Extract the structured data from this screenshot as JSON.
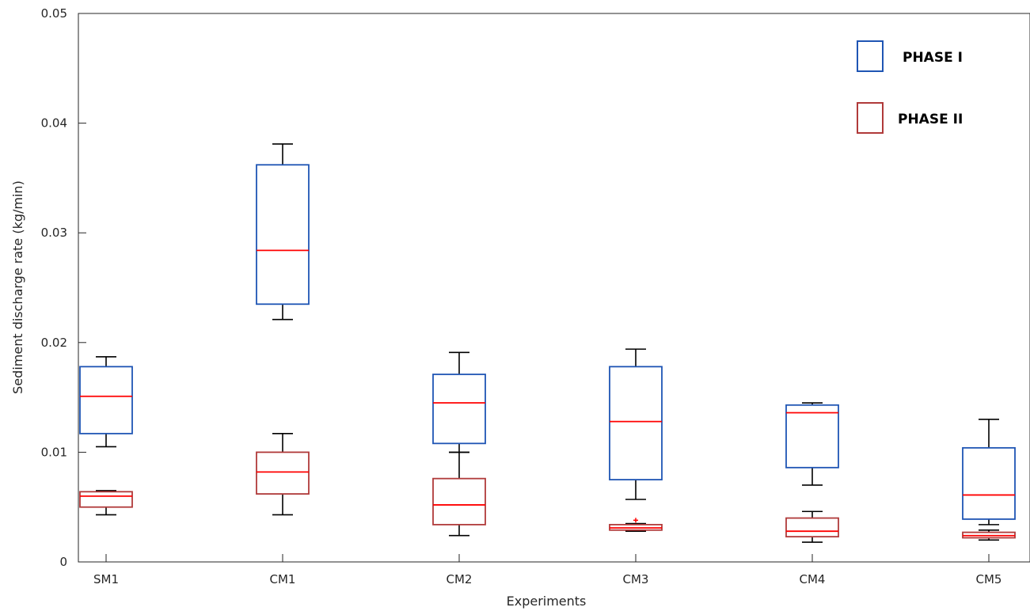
{
  "chart_data": {
    "type": "boxplot",
    "title": "",
    "xlabel": "Experiments",
    "ylabel": "Sediment discharge rate (kg/min)",
    "ylim": [
      0,
      0.05
    ],
    "yticks": [
      {
        "value": 0,
        "label": "0"
      },
      {
        "value": 0.01,
        "label": "0.01"
      },
      {
        "value": 0.02,
        "label": "0.02"
      },
      {
        "value": 0.03,
        "label": "0.03"
      },
      {
        "value": 0.04,
        "label": "0.04"
      },
      {
        "value": 0.05,
        "label": "0.05"
      }
    ],
    "categories": [
      "SM1",
      "CM1",
      "CM2",
      "CM3",
      "CM4",
      "CM5"
    ],
    "grid": false,
    "legend_position": "top-right",
    "colors": {
      "phase1_box": "#1f55b4",
      "phase2_box": "#b03a3a",
      "median": "#ff0000",
      "whisker": "#000000",
      "axis": "#262626"
    },
    "series": [
      {
        "name": "PHASE I",
        "boxes": [
          {
            "category": "SM1",
            "whisker_low": 0.0105,
            "q1": 0.0117,
            "median": 0.0151,
            "q3": 0.0178,
            "whisker_high": 0.0187
          },
          {
            "category": "CM1",
            "whisker_low": 0.0221,
            "q1": 0.0235,
            "median": 0.0284,
            "q3": 0.0362,
            "whisker_high": 0.0381
          },
          {
            "category": "CM2",
            "whisker_low": 0.01,
            "q1": 0.0108,
            "median": 0.0145,
            "q3": 0.0171,
            "whisker_high": 0.0191
          },
          {
            "category": "CM3",
            "whisker_low": 0.0057,
            "q1": 0.0075,
            "median": 0.0128,
            "q3": 0.0178,
            "whisker_high": 0.0194
          },
          {
            "category": "CM4",
            "whisker_low": 0.007,
            "q1": 0.0086,
            "median": 0.0136,
            "q3": 0.0143,
            "whisker_high": 0.0145
          },
          {
            "category": "CM5",
            "whisker_low": 0.0034,
            "q1": 0.0039,
            "median": 0.0061,
            "q3": 0.0104,
            "whisker_high": 0.013
          }
        ]
      },
      {
        "name": "PHASE II",
        "boxes": [
          {
            "category": "SM1",
            "whisker_low": 0.0043,
            "q1": 0.005,
            "median": 0.006,
            "q3": 0.0064,
            "whisker_high": 0.0065
          },
          {
            "category": "CM1",
            "whisker_low": 0.0043,
            "q1": 0.0062,
            "median": 0.0082,
            "q3": 0.01,
            "whisker_high": 0.0117
          },
          {
            "category": "CM2",
            "whisker_low": 0.0024,
            "q1": 0.0034,
            "median": 0.0052,
            "q3": 0.0076,
            "whisker_high": 0.01
          },
          {
            "category": "CM3",
            "whisker_low": 0.0028,
            "q1": 0.0029,
            "median": 0.0031,
            "q3": 0.0034,
            "whisker_high": 0.0035,
            "outliers": [
              0.0038
            ]
          },
          {
            "category": "CM4",
            "whisker_low": 0.0018,
            "q1": 0.0023,
            "median": 0.0028,
            "q3": 0.004,
            "whisker_high": 0.0046
          },
          {
            "category": "CM5",
            "whisker_low": 0.002,
            "q1": 0.0022,
            "median": 0.0024,
            "q3": 0.0027,
            "whisker_high": 0.0029
          }
        ]
      }
    ]
  }
}
